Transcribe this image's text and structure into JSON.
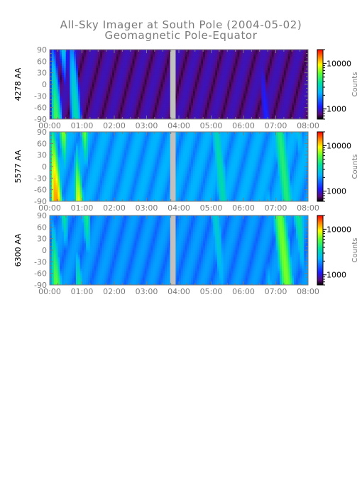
{
  "chart_data": {
    "type": "heatmap",
    "title": "All-Sky Imager at South Pole (2004-05-02)",
    "subtitle": "Geomagnetic Pole-Equator",
    "x_tick_labels": [
      "00:00",
      "01:00",
      "02:00",
      "03:00",
      "04:00",
      "05:00",
      "06:00",
      "07:00",
      "08:00"
    ],
    "xlim": [
      0,
      8
    ],
    "y_tick_labels": [
      "90",
      "60",
      "30",
      "0",
      "-30",
      "-60",
      "-90"
    ],
    "ylim": [
      -90,
      90
    ],
    "data_gap_hours": [
      3.73,
      3.9
    ],
    "colorbar": {
      "label": "Counts",
      "scale": "log",
      "range": [
        600,
        20000
      ],
      "tick_labels": [
        "1000",
        "10000"
      ],
      "ticks": [
        1000,
        10000
      ]
    },
    "panels": [
      {
        "ylabel": "4278 AA",
        "background": 800,
        "features": [
          {
            "t0": 0.0,
            "t1": 0.55,
            "level": 6000
          },
          {
            "t0": 0.55,
            "t1": 1.1,
            "level": 3500
          },
          {
            "t0": 6.3,
            "t1": 7.2,
            "level": 1200
          }
        ]
      },
      {
        "ylabel": "5577 AA",
        "background": 2000,
        "features": [
          {
            "t0": 0.0,
            "t1": 0.55,
            "level": 15000
          },
          {
            "t0": 0.75,
            "t1": 1.2,
            "level": 12000
          },
          {
            "t0": 4.8,
            "t1": 5.8,
            "level": 3500
          },
          {
            "t0": 6.5,
            "t1": 8.0,
            "level": 4500
          }
        ]
      },
      {
        "ylabel": "6300 AA",
        "background": 1800,
        "features": [
          {
            "t0": 0.0,
            "t1": 0.6,
            "level": 7000
          },
          {
            "t0": 0.75,
            "t1": 1.3,
            "level": 6000
          },
          {
            "t0": 4.6,
            "t1": 5.6,
            "level": 3000
          },
          {
            "t0": 6.6,
            "t1": 8.0,
            "level": 6500
          }
        ]
      }
    ]
  }
}
